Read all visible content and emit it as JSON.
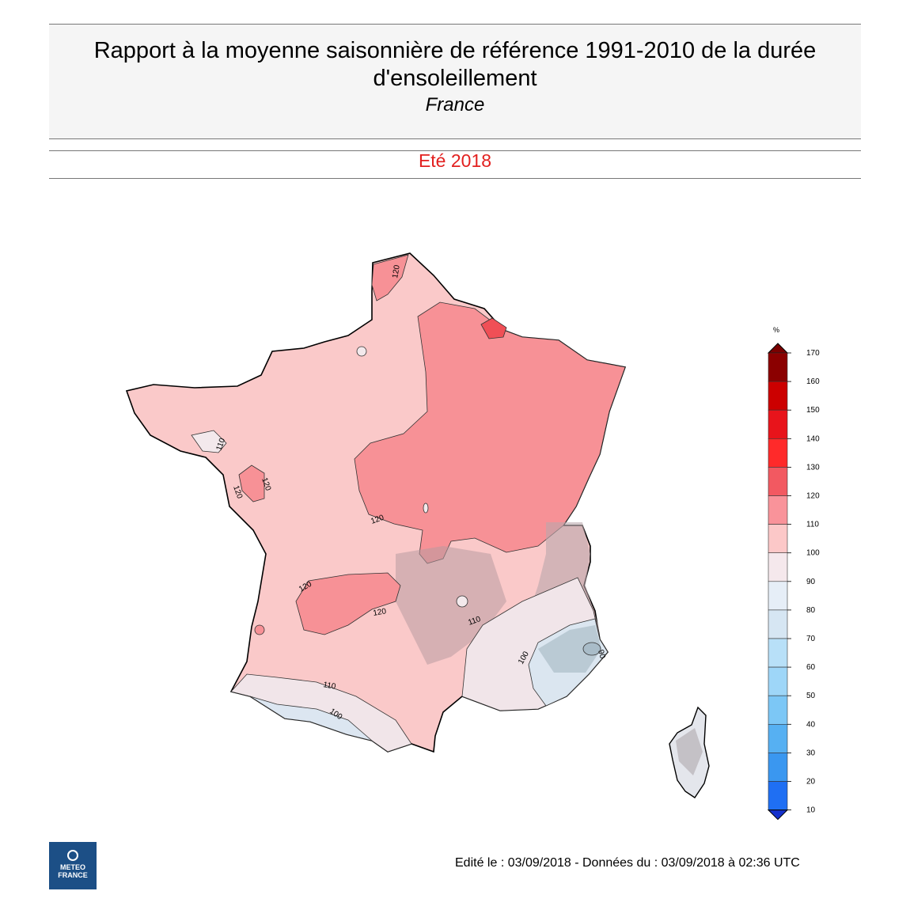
{
  "header": {
    "title": "Rapport à la moyenne saisonnière de référence 1991-2010 de la durée d'ensoleillement",
    "region": "France",
    "season": "Eté 2018"
  },
  "legend": {
    "unit": "%",
    "levels": [
      "170",
      "160",
      "150",
      "140",
      "130",
      "120",
      "110",
      "100",
      "90",
      "80",
      "70",
      "60",
      "50",
      "40",
      "30",
      "20",
      "10"
    ],
    "colors": [
      "#8b0000",
      "#cc0000",
      "#e8141b",
      "#ff2a2a",
      "#f25961",
      "#f9939a",
      "#fcc8c8",
      "#f5e8ec",
      "#e6eef7",
      "#d6e6f3",
      "#b8e0f8",
      "#9ed6f8",
      "#7cc7f6",
      "#56b0f2",
      "#3a97f0",
      "#1f6ff3",
      "#0a3df9"
    ],
    "top_cap": "#7a0000",
    "bottom_cap": "#1531cc"
  },
  "map": {
    "contour_labels": [
      "120",
      "120",
      "120",
      "120",
      "120",
      "120",
      "110",
      "110",
      "110",
      "100",
      "100",
      "90"
    ],
    "zones": {
      "class_90_100": "#dfe9f3",
      "class_100_110": "#f3e9ec",
      "class_110_120": "#fac9c9",
      "class_120_130": "#f79196",
      "class_130_140": "#f04f56"
    }
  },
  "footer": {
    "edit_note": "Edité le : 03/09/2018 - Données du : 03/09/2018 à 02:36 UTC",
    "logo_line1": "METEO",
    "logo_line2": "FRANCE"
  }
}
